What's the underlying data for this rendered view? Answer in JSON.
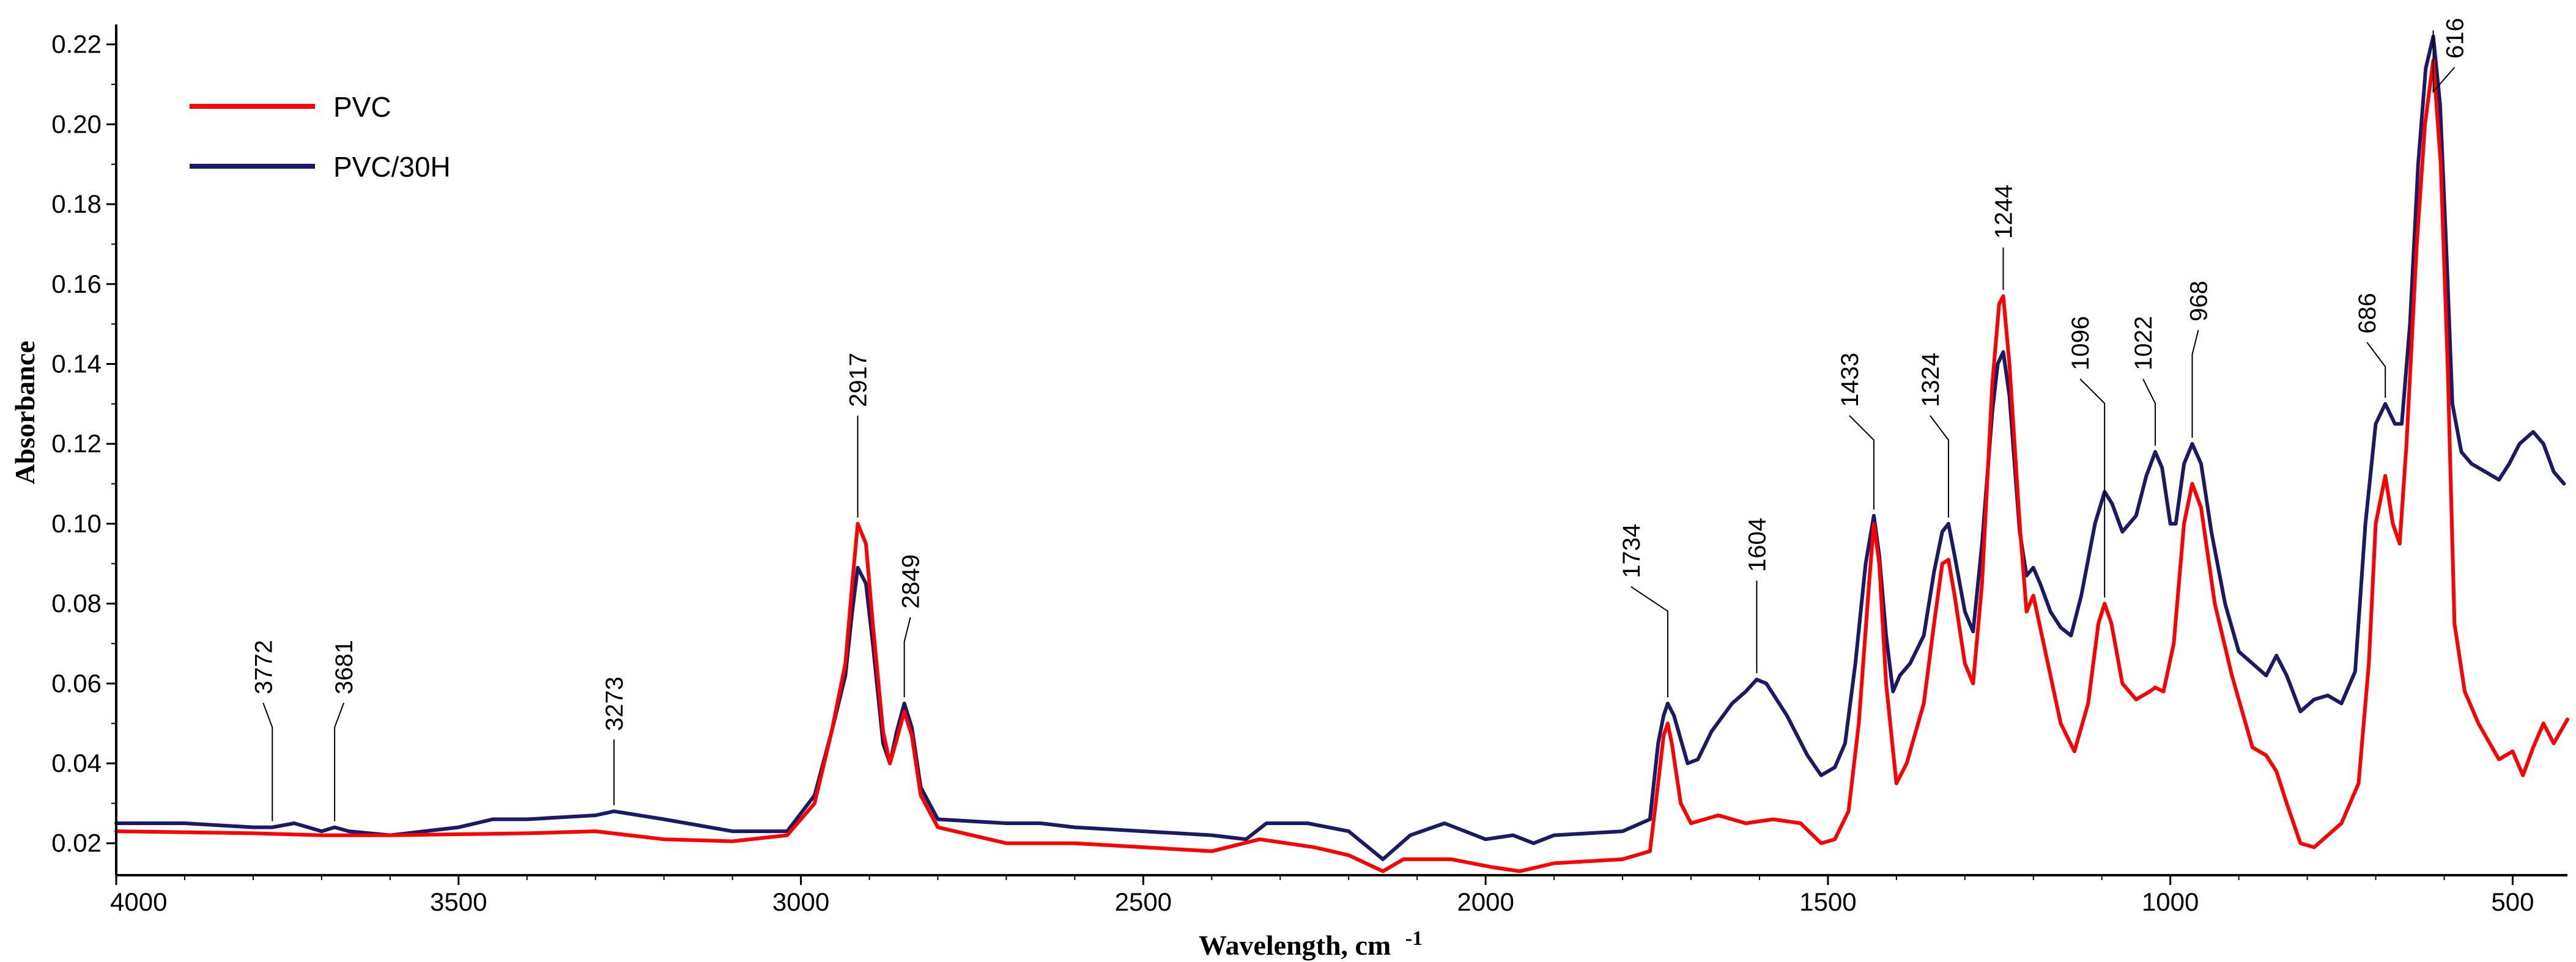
{
  "chart_data": {
    "type": "line",
    "title": "",
    "xlabel": "Wavelength, cm",
    "xlabel_sup": "-1",
    "ylabel": "Absorbance",
    "xlim": [
      4000,
      420
    ],
    "ylim": [
      0.012,
      0.225
    ],
    "x_ticks": [
      4000,
      3500,
      3000,
      2500,
      2000,
      1500,
      1000,
      500
    ],
    "x_tick_labels": [
      "4000",
      "3500",
      "3000",
      "2500",
      "2000",
      "1500",
      "1000",
      "500"
    ],
    "y_ticks": [
      0.02,
      0.04,
      0.06,
      0.08,
      0.1,
      0.12,
      0.14,
      0.16,
      0.18,
      0.2,
      0.22
    ],
    "y_tick_labels": [
      "0.02",
      "0.04",
      "0.06",
      "0.08",
      "0.10",
      "0.12",
      "0.14",
      "0.16",
      "0.18",
      "0.20",
      "0.22"
    ],
    "legend_position": "top-left",
    "series": [
      {
        "name": "PVC",
        "color": "#ff0000",
        "points": [
          [
            4000,
            0.023
          ],
          [
            3800,
            0.0225
          ],
          [
            3700,
            0.022
          ],
          [
            3600,
            0.022
          ],
          [
            3400,
            0.0225
          ],
          [
            3300,
            0.023
          ],
          [
            3200,
            0.021
          ],
          [
            3100,
            0.0205
          ],
          [
            3020,
            0.022
          ],
          [
            2980,
            0.03
          ],
          [
            2955,
            0.048
          ],
          [
            2935,
            0.065
          ],
          [
            2925,
            0.085
          ],
          [
            2917,
            0.1
          ],
          [
            2905,
            0.095
          ],
          [
            2895,
            0.075
          ],
          [
            2880,
            0.048
          ],
          [
            2870,
            0.04
          ],
          [
            2860,
            0.046
          ],
          [
            2849,
            0.053
          ],
          [
            2838,
            0.047
          ],
          [
            2825,
            0.032
          ],
          [
            2800,
            0.024
          ],
          [
            2700,
            0.02
          ],
          [
            2600,
            0.02
          ],
          [
            2500,
            0.019
          ],
          [
            2400,
            0.018
          ],
          [
            2330,
            0.021
          ],
          [
            2250,
            0.019
          ],
          [
            2200,
            0.017
          ],
          [
            2150,
            0.013
          ],
          [
            2120,
            0.016
          ],
          [
            2050,
            0.016
          ],
          [
            1990,
            0.014
          ],
          [
            1950,
            0.013
          ],
          [
            1900,
            0.015
          ],
          [
            1800,
            0.016
          ],
          [
            1760,
            0.018
          ],
          [
            1748,
            0.035
          ],
          [
            1740,
            0.047
          ],
          [
            1734,
            0.05
          ],
          [
            1728,
            0.045
          ],
          [
            1715,
            0.03
          ],
          [
            1700,
            0.025
          ],
          [
            1660,
            0.027
          ],
          [
            1620,
            0.025
          ],
          [
            1580,
            0.026
          ],
          [
            1540,
            0.025
          ],
          [
            1510,
            0.02
          ],
          [
            1490,
            0.021
          ],
          [
            1470,
            0.028
          ],
          [
            1455,
            0.05
          ],
          [
            1440,
            0.085
          ],
          [
            1433,
            0.1
          ],
          [
            1425,
            0.09
          ],
          [
            1415,
            0.06
          ],
          [
            1400,
            0.035
          ],
          [
            1385,
            0.04
          ],
          [
            1360,
            0.055
          ],
          [
            1345,
            0.075
          ],
          [
            1333,
            0.09
          ],
          [
            1324,
            0.091
          ],
          [
            1315,
            0.082
          ],
          [
            1300,
            0.065
          ],
          [
            1288,
            0.06
          ],
          [
            1275,
            0.085
          ],
          [
            1260,
            0.135
          ],
          [
            1250,
            0.155
          ],
          [
            1244,
            0.157
          ],
          [
            1235,
            0.14
          ],
          [
            1220,
            0.1
          ],
          [
            1210,
            0.078
          ],
          [
            1200,
            0.082
          ],
          [
            1190,
            0.074
          ],
          [
            1180,
            0.066
          ],
          [
            1160,
            0.05
          ],
          [
            1140,
            0.043
          ],
          [
            1120,
            0.055
          ],
          [
            1105,
            0.075
          ],
          [
            1096,
            0.08
          ],
          [
            1086,
            0.075
          ],
          [
            1070,
            0.06
          ],
          [
            1050,
            0.056
          ],
          [
            1030,
            0.058
          ],
          [
            1022,
            0.059
          ],
          [
            1010,
            0.058
          ],
          [
            995,
            0.07
          ],
          [
            980,
            0.1
          ],
          [
            968,
            0.11
          ],
          [
            955,
            0.104
          ],
          [
            935,
            0.08
          ],
          [
            910,
            0.062
          ],
          [
            880,
            0.044
          ],
          [
            860,
            0.042
          ],
          [
            845,
            0.038
          ],
          [
            830,
            0.03
          ],
          [
            810,
            0.02
          ],
          [
            790,
            0.019
          ],
          [
            770,
            0.022
          ],
          [
            750,
            0.025
          ],
          [
            725,
            0.035
          ],
          [
            710,
            0.065
          ],
          [
            700,
            0.1
          ],
          [
            686,
            0.112
          ],
          [
            675,
            0.1
          ],
          [
            665,
            0.095
          ],
          [
            655,
            0.12
          ],
          [
            640,
            0.17
          ],
          [
            628,
            0.2
          ],
          [
            616,
            0.216
          ],
          [
            605,
            0.19
          ],
          [
            595,
            0.14
          ],
          [
            585,
            0.075
          ],
          [
            570,
            0.058
          ],
          [
            550,
            0.05
          ],
          [
            520,
            0.041
          ],
          [
            500,
            0.043
          ],
          [
            485,
            0.037
          ],
          [
            470,
            0.044
          ],
          [
            455,
            0.05
          ],
          [
            440,
            0.045
          ],
          [
            420,
            0.051
          ]
        ]
      },
      {
        "name": "PVC/30H",
        "color": "#1a1a66",
        "points": [
          [
            4000,
            0.025
          ],
          [
            3900,
            0.025
          ],
          [
            3800,
            0.024
          ],
          [
            3772,
            0.024
          ],
          [
            3740,
            0.025
          ],
          [
            3700,
            0.023
          ],
          [
            3681,
            0.024
          ],
          [
            3660,
            0.023
          ],
          [
            3600,
            0.022
          ],
          [
            3500,
            0.024
          ],
          [
            3450,
            0.026
          ],
          [
            3400,
            0.026
          ],
          [
            3300,
            0.027
          ],
          [
            3273,
            0.028
          ],
          [
            3200,
            0.026
          ],
          [
            3100,
            0.023
          ],
          [
            3020,
            0.023
          ],
          [
            2980,
            0.032
          ],
          [
            2955,
            0.048
          ],
          [
            2935,
            0.062
          ],
          [
            2925,
            0.078
          ],
          [
            2917,
            0.089
          ],
          [
            2905,
            0.085
          ],
          [
            2895,
            0.07
          ],
          [
            2880,
            0.045
          ],
          [
            2870,
            0.04
          ],
          [
            2860,
            0.048
          ],
          [
            2849,
            0.055
          ],
          [
            2838,
            0.049
          ],
          [
            2825,
            0.034
          ],
          [
            2800,
            0.026
          ],
          [
            2700,
            0.025
          ],
          [
            2650,
            0.025
          ],
          [
            2600,
            0.024
          ],
          [
            2500,
            0.023
          ],
          [
            2400,
            0.022
          ],
          [
            2350,
            0.021
          ],
          [
            2320,
            0.025
          ],
          [
            2260,
            0.025
          ],
          [
            2200,
            0.023
          ],
          [
            2150,
            0.016
          ],
          [
            2110,
            0.022
          ],
          [
            2060,
            0.025
          ],
          [
            2000,
            0.021
          ],
          [
            1960,
            0.022
          ],
          [
            1930,
            0.02
          ],
          [
            1900,
            0.022
          ],
          [
            1800,
            0.023
          ],
          [
            1760,
            0.026
          ],
          [
            1748,
            0.045
          ],
          [
            1740,
            0.052
          ],
          [
            1734,
            0.055
          ],
          [
            1725,
            0.052
          ],
          [
            1705,
            0.04
          ],
          [
            1690,
            0.041
          ],
          [
            1670,
            0.048
          ],
          [
            1640,
            0.055
          ],
          [
            1620,
            0.058
          ],
          [
            1604,
            0.061
          ],
          [
            1590,
            0.06
          ],
          [
            1560,
            0.052
          ],
          [
            1530,
            0.042
          ],
          [
            1510,
            0.037
          ],
          [
            1490,
            0.039
          ],
          [
            1475,
            0.045
          ],
          [
            1460,
            0.065
          ],
          [
            1445,
            0.09
          ],
          [
            1433,
            0.102
          ],
          [
            1425,
            0.092
          ],
          [
            1415,
            0.072
          ],
          [
            1405,
            0.058
          ],
          [
            1395,
            0.062
          ],
          [
            1380,
            0.065
          ],
          [
            1360,
            0.072
          ],
          [
            1345,
            0.088
          ],
          [
            1333,
            0.098
          ],
          [
            1324,
            0.1
          ],
          [
            1315,
            0.092
          ],
          [
            1300,
            0.078
          ],
          [
            1288,
            0.073
          ],
          [
            1275,
            0.095
          ],
          [
            1260,
            0.128
          ],
          [
            1252,
            0.14
          ],
          [
            1244,
            0.143
          ],
          [
            1235,
            0.132
          ],
          [
            1220,
            0.098
          ],
          [
            1210,
            0.087
          ],
          [
            1200,
            0.089
          ],
          [
            1190,
            0.085
          ],
          [
            1175,
            0.078
          ],
          [
            1160,
            0.074
          ],
          [
            1145,
            0.072
          ],
          [
            1130,
            0.082
          ],
          [
            1110,
            0.1
          ],
          [
            1096,
            0.108
          ],
          [
            1085,
            0.105
          ],
          [
            1070,
            0.098
          ],
          [
            1050,
            0.102
          ],
          [
            1035,
            0.112
          ],
          [
            1022,
            0.118
          ],
          [
            1012,
            0.114
          ],
          [
            1000,
            0.1
          ],
          [
            992,
            0.1
          ],
          [
            980,
            0.115
          ],
          [
            968,
            0.12
          ],
          [
            955,
            0.115
          ],
          [
            940,
            0.098
          ],
          [
            920,
            0.08
          ],
          [
            900,
            0.068
          ],
          [
            880,
            0.065
          ],
          [
            860,
            0.062
          ],
          [
            845,
            0.067
          ],
          [
            830,
            0.062
          ],
          [
            810,
            0.053
          ],
          [
            790,
            0.056
          ],
          [
            770,
            0.057
          ],
          [
            750,
            0.055
          ],
          [
            730,
            0.063
          ],
          [
            715,
            0.1
          ],
          [
            700,
            0.125
          ],
          [
            686,
            0.13
          ],
          [
            672,
            0.125
          ],
          [
            662,
            0.125
          ],
          [
            650,
            0.15
          ],
          [
            638,
            0.19
          ],
          [
            627,
            0.214
          ],
          [
            616,
            0.222
          ],
          [
            606,
            0.205
          ],
          [
            596,
            0.165
          ],
          [
            588,
            0.13
          ],
          [
            575,
            0.118
          ],
          [
            560,
            0.115
          ],
          [
            540,
            0.113
          ],
          [
            520,
            0.111
          ],
          [
            505,
            0.115
          ],
          [
            490,
            0.12
          ],
          [
            470,
            0.123
          ],
          [
            455,
            0.12
          ],
          [
            440,
            0.113
          ],
          [
            425,
            0.11
          ]
        ]
      }
    ],
    "annotations": [
      {
        "label": "3772",
        "x": 3772,
        "y": 0.024
      },
      {
        "label": "3681",
        "x": 3681,
        "y": 0.024
      },
      {
        "label": "3273",
        "x": 3273,
        "y": 0.028
      },
      {
        "label": "2917",
        "x": 2917,
        "y": 0.1
      },
      {
        "label": "2849",
        "x": 2849,
        "y": 0.055
      },
      {
        "label": "1734",
        "x": 1734,
        "y": 0.055
      },
      {
        "label": "1604",
        "x": 1604,
        "y": 0.061
      },
      {
        "label": "1433",
        "x": 1433,
        "y": 0.102
      },
      {
        "label": "1324",
        "x": 1324,
        "y": 0.1
      },
      {
        "label": "1244",
        "x": 1244,
        "y": 0.157
      },
      {
        "label": "1096",
        "x": 1096,
        "y": 0.08
      },
      {
        "label": "1022",
        "x": 1022,
        "y": 0.118
      },
      {
        "label": "968",
        "x": 968,
        "y": 0.12
      },
      {
        "label": "686",
        "x": 686,
        "y": 0.13
      },
      {
        "label": "616",
        "x": 616,
        "y": 0.222
      }
    ]
  }
}
